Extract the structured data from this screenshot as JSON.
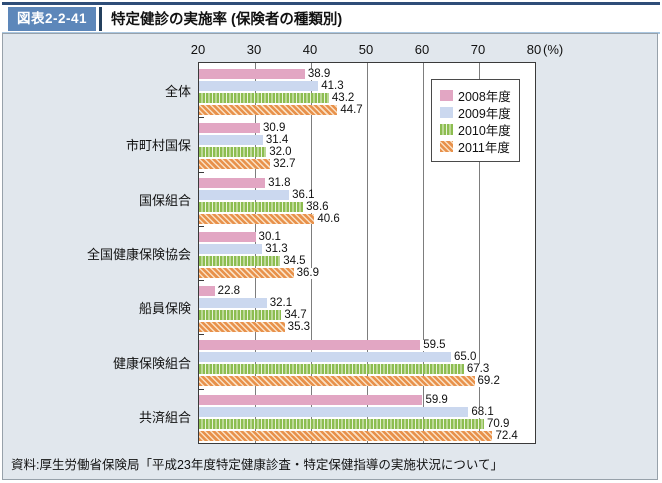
{
  "header": {
    "figure_label": "図表2-2-41",
    "title": "特定健診の実施率 (保険者の種類別)"
  },
  "source": "資料:厚生労働省保険局「平成23年度特定健康診査・特定保健指導の実施状況について」",
  "colors": {
    "header_top_border": "#2e4d78",
    "figure_label_bg": "#5d87ba",
    "panel_bg": "#e1e7ed",
    "plot_border": "#3a3a3a",
    "gridline": "#7d7d7d"
  },
  "chart_data": {
    "type": "bar",
    "orientation": "horizontal",
    "title": "特定健診の実施率 (保険者の種類別)",
    "categories": [
      "全体",
      "市町村国保",
      "国保組合",
      "全国健康保険協会",
      "船員保険",
      "健康保険組合",
      "共済組合"
    ],
    "series": [
      {
        "name": "2008年度",
        "pattern": "solid",
        "color": "#e2a6c3",
        "stripe": "#e2a6c3",
        "values": [
          38.9,
          30.9,
          31.8,
          30.1,
          22.8,
          59.5,
          59.9
        ]
      },
      {
        "name": "2009年度",
        "pattern": "solid",
        "color": "#cbd8ef",
        "stripe": "#cbd8ef",
        "values": [
          41.3,
          31.4,
          36.1,
          31.3,
          32.1,
          65.0,
          68.1
        ]
      },
      {
        "name": "2010年度",
        "pattern": "vertical-stripes",
        "color": "#8cbd50",
        "stripe": "#ebf3dc",
        "values": [
          43.2,
          32.0,
          38.6,
          34.5,
          34.7,
          67.3,
          70.9
        ]
      },
      {
        "name": "2011年度",
        "pattern": "diagonal-stripes",
        "color": "#e8914b",
        "stripe": "#f9e0c3",
        "values": [
          44.7,
          32.7,
          40.6,
          36.9,
          35.3,
          69.2,
          72.4
        ]
      }
    ],
    "xlim": [
      20,
      80
    ],
    "xticks": [
      20,
      30,
      40,
      50,
      60,
      70,
      80
    ],
    "x_unit_label": "(%)",
    "value_label_decimals": 1,
    "grid": true,
    "legend_position": "upper-right-inside"
  }
}
